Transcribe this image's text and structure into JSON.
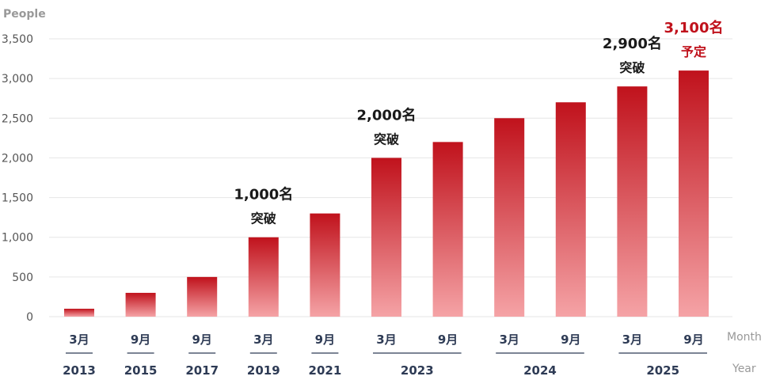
{
  "chart_data": {
    "type": "bar",
    "ylabel": "People",
    "xlabel_month": "Month",
    "xlabel_year": "Year",
    "ylim": [
      0,
      3500
    ],
    "yticks": [
      "0",
      "500",
      "1,000",
      "1,500",
      "2,000",
      "2,500",
      "3,000",
      "3,500"
    ],
    "grid": true,
    "months": [
      "3月",
      "9月",
      "9月",
      "3月",
      "9月",
      "3月",
      "9月",
      "3月",
      "9月",
      "3月",
      "9月"
    ],
    "values": [
      100,
      300,
      500,
      1000,
      1300,
      2000,
      2200,
      2500,
      2700,
      2900,
      3100
    ],
    "years": [
      {
        "label": "2013",
        "from": 0,
        "to": 0
      },
      {
        "label": "2015",
        "from": 1,
        "to": 1
      },
      {
        "label": "2017",
        "from": 2,
        "to": 2
      },
      {
        "label": "2019",
        "from": 3,
        "to": 3
      },
      {
        "label": "2021",
        "from": 4,
        "to": 4
      },
      {
        "label": "2023",
        "from": 5,
        "to": 6
      },
      {
        "label": "2024",
        "from": 7,
        "to": 8
      },
      {
        "label": "2025",
        "from": 9,
        "to": 10
      }
    ],
    "annotations": [
      {
        "index": 3,
        "line1": "1,000名",
        "line2": "突破",
        "color": "#1a1a1a"
      },
      {
        "index": 5,
        "line1": "2,000名",
        "line2": "突破",
        "color": "#1a1a1a"
      },
      {
        "index": 9,
        "line1": "2,900名",
        "line2": "突破",
        "color": "#1a1a1a"
      },
      {
        "index": 10,
        "line1": "3,100名",
        "line2": "予定",
        "color": "#c0121c"
      }
    ],
    "colors": {
      "bar_top": "#c0121c",
      "bar_bottom": "#f5a3a6",
      "axis_text": "#555555",
      "category_text": "#2e3b55",
      "grid": "#e6e6e6",
      "secondary_label": "#999999"
    }
  }
}
